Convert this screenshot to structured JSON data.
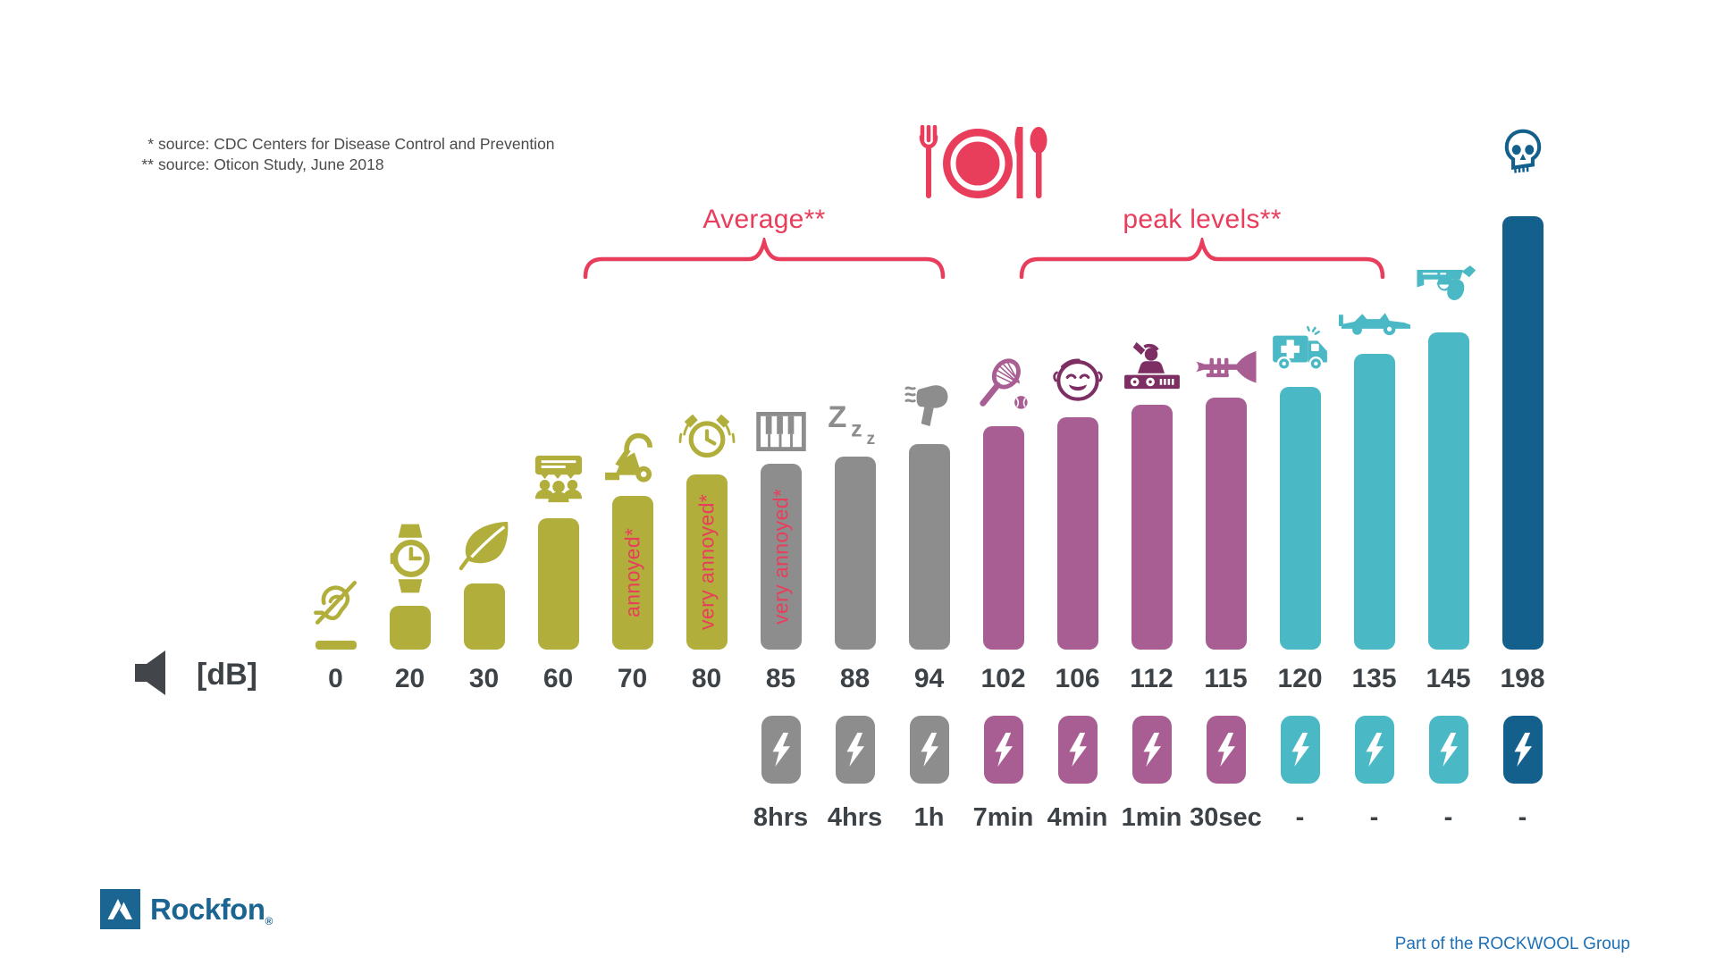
{
  "sources": {
    "line1_marker": "*",
    "line1_text": "source: CDC Centers for Disease Control and Prevention",
    "line2_marker": "**",
    "line2_text": "source: Oticon Study, June 2018"
  },
  "annotations": {
    "average_label": "Average**",
    "peak_label": "peak levels**",
    "restaurant_icon": "restaurant-icon",
    "skull_icon": "skull-icon"
  },
  "axis": {
    "unit_label": "[dB]",
    "speaker_icon": "speaker-icon"
  },
  "colors": {
    "olive": "#b1ae3b",
    "gray": "#8d8d8d",
    "mauve": "#a85e93",
    "mauve_dark_icon": "#7d2f64",
    "teal": "#4ab9c5",
    "dark_blue": "#14608c",
    "accent_pink": "#e83e5c",
    "logo_blue": "#1a6591",
    "tagline_blue": "#1d70b7",
    "label_dark": "#3d4247"
  },
  "chart_data": {
    "type": "bar",
    "title": "",
    "xlabel": "",
    "ylabel": "[dB]",
    "unit": "dB",
    "ylim": [
      0,
      198
    ],
    "grid": false,
    "legend": "none",
    "group_colors": {
      "quiet": "#b1ae3b",
      "average": "#8d8d8d",
      "peak": "#a85e93",
      "danger": "#4ab9c5",
      "extreme": "#14608c"
    },
    "categories": [
      "0",
      "20",
      "30",
      "60",
      "70",
      "80",
      "85",
      "88",
      "94",
      "102",
      "106",
      "112",
      "115",
      "120",
      "135",
      "145",
      "198"
    ],
    "values": [
      0,
      20,
      30,
      60,
      70,
      80,
      85,
      88,
      94,
      102,
      106,
      112,
      115,
      120,
      135,
      145,
      198
    ],
    "exposure_times": [
      "",
      "",
      "",
      "",
      "",
      "",
      "8hrs",
      "4hrs",
      "1h",
      "7min",
      "4min",
      "1min",
      "30sec",
      "-",
      "-",
      "-",
      "-"
    ],
    "columns": [
      {
        "db": 0,
        "label": "0",
        "icon": "ear-off",
        "group": "quiet",
        "bar_text": "",
        "time": ""
      },
      {
        "db": 20,
        "label": "20",
        "icon": "wristwatch",
        "group": "quiet",
        "bar_text": "",
        "time": ""
      },
      {
        "db": 30,
        "label": "30",
        "icon": "leaf",
        "group": "quiet",
        "bar_text": "",
        "time": ""
      },
      {
        "db": 60,
        "label": "60",
        "icon": "group-conversation",
        "group": "quiet",
        "bar_text": "",
        "time": ""
      },
      {
        "db": 70,
        "label": "70",
        "icon": "vacuum-cleaner",
        "group": "quiet",
        "bar_text": "annoyed*",
        "time": ""
      },
      {
        "db": 80,
        "label": "80",
        "icon": "alarm-clock",
        "group": "quiet",
        "bar_text": "very annoyed*",
        "time": ""
      },
      {
        "db": 85,
        "label": "85",
        "icon": "piano",
        "group": "average",
        "bar_text": "very annoyed*",
        "time": "8hrs"
      },
      {
        "db": 88,
        "label": "88",
        "icon": "sleep-zzz",
        "group": "average",
        "bar_text": "",
        "time": "4hrs"
      },
      {
        "db": 94,
        "label": "94",
        "icon": "hair-dryer",
        "group": "average",
        "bar_text": "",
        "time": "1h"
      },
      {
        "db": 102,
        "label": "102",
        "icon": "tennis-racket",
        "group": "peak",
        "bar_text": "",
        "time": "7min"
      },
      {
        "db": 106,
        "label": "106",
        "icon": "crying-baby",
        "group": "peak",
        "bar_text": "",
        "time": "4min",
        "icon_color": "#7d2f64"
      },
      {
        "db": 112,
        "label": "112",
        "icon": "dj-deck",
        "group": "peak",
        "bar_text": "",
        "time": "1min",
        "icon_color": "#7d2f64"
      },
      {
        "db": 115,
        "label": "115",
        "icon": "trumpet",
        "group": "peak",
        "bar_text": "",
        "time": "30sec"
      },
      {
        "db": 120,
        "label": "120",
        "icon": "ambulance",
        "group": "danger",
        "bar_text": "",
        "time": "-"
      },
      {
        "db": 135,
        "label": "135",
        "icon": "race-car",
        "group": "danger",
        "bar_text": "",
        "time": "-"
      },
      {
        "db": 145,
        "label": "145",
        "icon": "revolver",
        "group": "danger",
        "bar_text": "",
        "time": "-"
      },
      {
        "db": 198,
        "label": "198",
        "icon": "skull",
        "group": "extreme",
        "bar_text": "",
        "time": "-"
      }
    ]
  },
  "footer": {
    "brand": "Rockfon",
    "registered": "®",
    "tagline": "Part of the ROCKWOOL Group"
  }
}
